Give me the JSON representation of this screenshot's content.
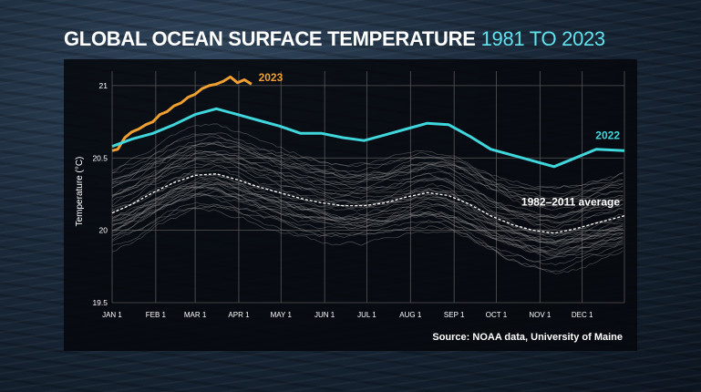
{
  "title": {
    "main": "GLOBAL OCEAN SURFACE TEMPERATURE",
    "range": "1981 TO 2023"
  },
  "source": "Source: NOAA data, University of Maine",
  "colors": {
    "y2023": "#f0a030",
    "y2022": "#3fd6dc",
    "average": "#ffffff",
    "background_years": "#8a8a8a"
  },
  "chart_data": {
    "type": "line",
    "title": "GLOBAL OCEAN SURFACE TEMPERATURE 1981 TO 2023",
    "ylabel": "Temperature (°C)",
    "xlabel": "",
    "ylim": [
      19.5,
      21.1
    ],
    "yticks": [
      "19.5",
      "20",
      "20.5",
      "21"
    ],
    "xticks": [
      "JAN 1",
      "FEB 1",
      "MAR 1",
      "APR 1",
      "MAY 1",
      "JUN 1",
      "JUL 1",
      "AUG 1",
      "SEP 1",
      "OCT 1",
      "NOV 1",
      "DEC 1"
    ],
    "grid": true,
    "annotations": [
      "2023",
      "2022",
      "1982–2011 average"
    ],
    "series": [
      {
        "name": "2023",
        "color": "#f0a030",
        "x": [
          1,
          5,
          10,
          15,
          20,
          25,
          30,
          35,
          40,
          45,
          50,
          55,
          60,
          65,
          70,
          75,
          80,
          85,
          90,
          95,
          100
        ],
        "y": [
          20.55,
          20.56,
          20.64,
          20.68,
          20.7,
          20.73,
          20.75,
          20.8,
          20.82,
          20.86,
          20.88,
          20.92,
          20.94,
          20.98,
          21.0,
          21.01,
          21.03,
          21.06,
          21.02,
          21.04,
          21.01
        ]
      },
      {
        "name": "2022",
        "color": "#3fd6dc",
        "x": [
          1,
          15,
          30,
          45,
          60,
          75,
          90,
          105,
          120,
          135,
          150,
          165,
          180,
          195,
          210,
          225,
          240,
          255,
          270,
          285,
          300,
          315,
          330,
          345,
          365
        ],
        "y": [
          20.58,
          20.63,
          20.67,
          20.73,
          20.8,
          20.84,
          20.8,
          20.76,
          20.72,
          20.67,
          20.67,
          20.64,
          20.62,
          20.66,
          20.7,
          20.74,
          20.73,
          20.65,
          20.56,
          20.52,
          20.48,
          20.44,
          20.5,
          20.56,
          20.55
        ]
      },
      {
        "name": "1982–2011 average",
        "color": "#ffffff",
        "x": [
          1,
          15,
          30,
          45,
          60,
          75,
          90,
          105,
          120,
          135,
          150,
          165,
          180,
          195,
          210,
          225,
          240,
          255,
          270,
          285,
          300,
          315,
          330,
          345,
          365
        ],
        "y": [
          20.12,
          20.18,
          20.26,
          20.33,
          20.38,
          20.39,
          20.35,
          20.3,
          20.26,
          20.22,
          20.19,
          20.17,
          20.17,
          20.19,
          20.23,
          20.26,
          20.24,
          20.18,
          20.1,
          20.04,
          20.0,
          19.98,
          20.01,
          20.05,
          20.1
        ]
      }
    ]
  }
}
